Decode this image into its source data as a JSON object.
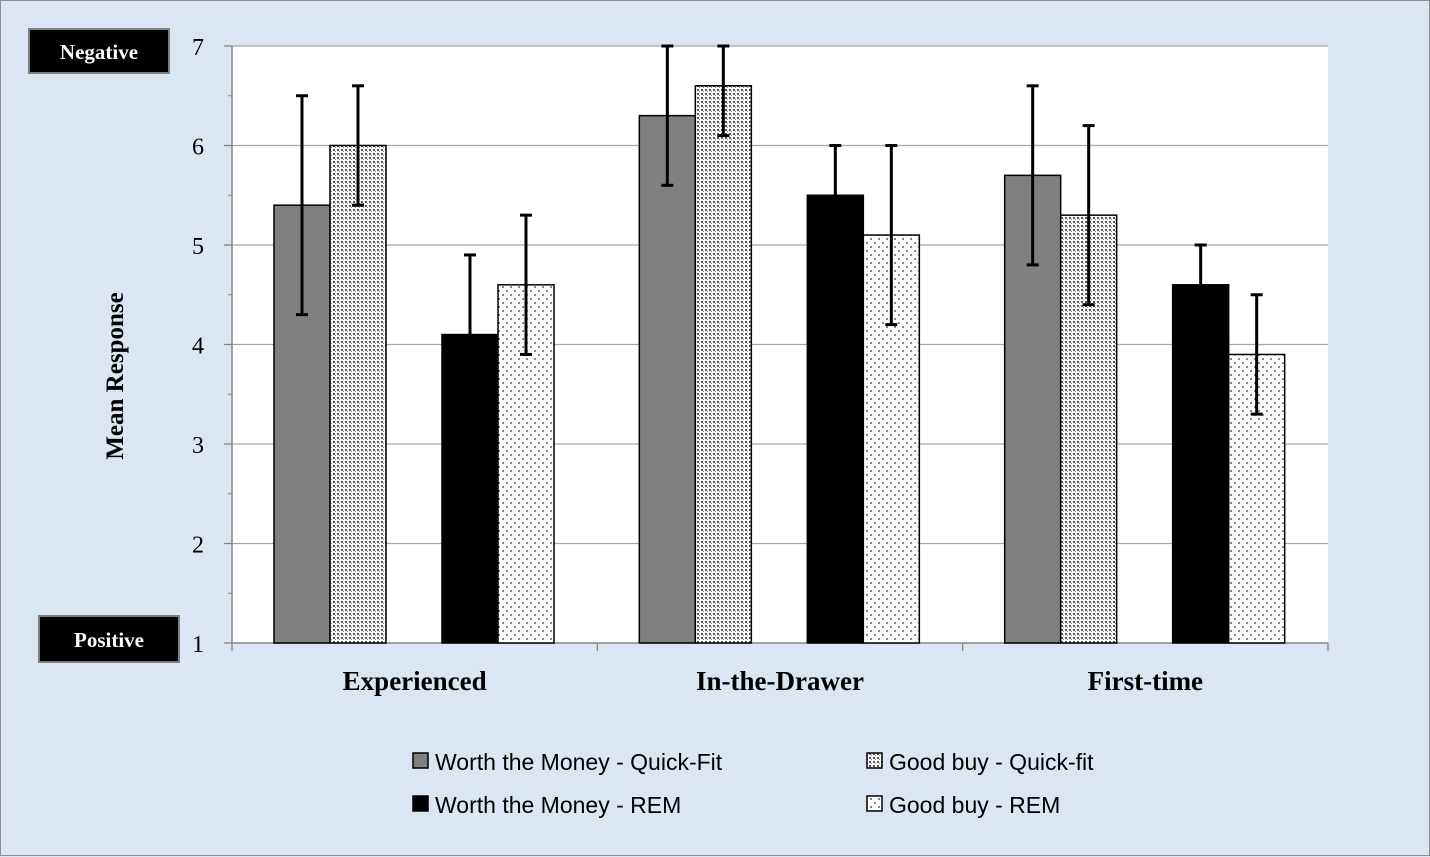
{
  "chart_data": {
    "type": "bar",
    "title": "",
    "xlabel": "",
    "ylabel": "Mean Response",
    "ylim": [
      1,
      7
    ],
    "yticks": [
      1,
      2,
      3,
      4,
      5,
      6,
      7
    ],
    "grid": true,
    "legend_position": "bottom",
    "top_label": "Negative",
    "bottom_label": "Positive",
    "categories": [
      "Experienced",
      "In-the-Drawer",
      "First-time"
    ],
    "series": [
      {
        "name": "Worth the Money - Quick-Fit",
        "fill": "gray",
        "values": [
          5.4,
          6.3,
          5.7
        ],
        "error_low": [
          4.3,
          5.6,
          4.8
        ],
        "error_high": [
          6.5,
          7.0,
          6.6
        ]
      },
      {
        "name": "Good buy - Quick-fit",
        "fill": "dense-dots",
        "values": [
          6.0,
          6.6,
          5.3
        ],
        "error_low": [
          5.4,
          6.1,
          4.4
        ],
        "error_high": [
          6.6,
          7.0,
          6.2
        ]
      },
      {
        "name": "Worth the Money - REM",
        "fill": "black",
        "values": [
          4.1,
          5.5,
          4.6
        ],
        "error_low": null,
        "error_high": [
          4.9,
          6.0,
          5.0
        ]
      },
      {
        "name": "Good buy - REM",
        "fill": "sparse-dots",
        "values": [
          4.6,
          5.1,
          3.9
        ],
        "error_low": [
          3.9,
          4.2,
          3.3
        ],
        "error_high": [
          5.3,
          6.0,
          4.5
        ]
      }
    ],
    "colors": {
      "gray": "#808080",
      "black": "#000000",
      "grid": "#a6a6a6",
      "axis": "#868686"
    }
  }
}
